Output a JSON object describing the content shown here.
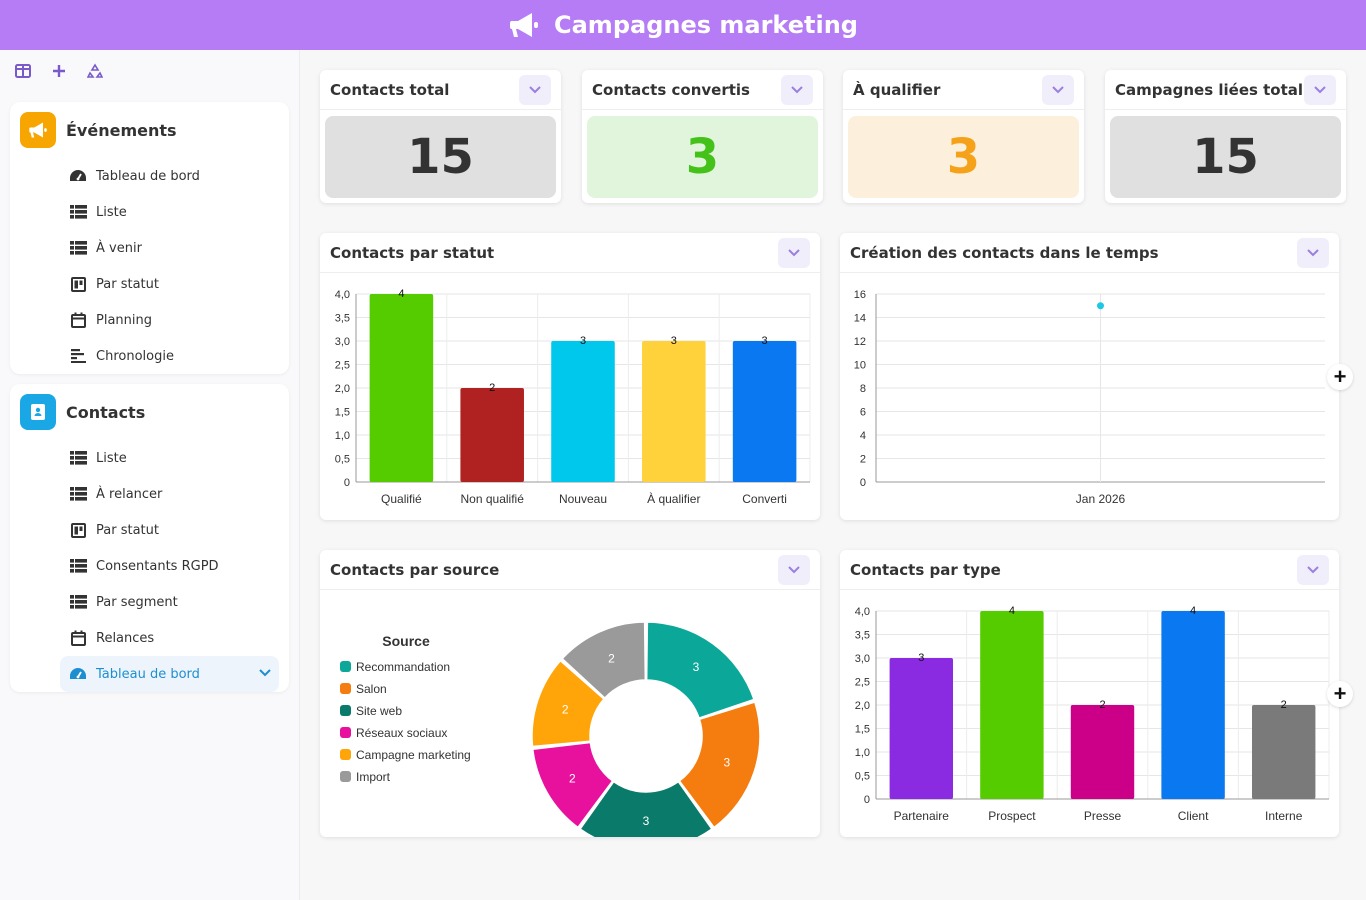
{
  "header": {
    "title": "Campagnes marketing",
    "icon": "megaphone-icon",
    "bg": "#b57cf5"
  },
  "sidebar": {
    "tools": [
      "layout-icon",
      "plus-icon",
      "recycle-icon"
    ],
    "groups": [
      {
        "label": "Événements",
        "color": "#f7a500",
        "icon": "megaphone-icon",
        "items": [
          {
            "label": "Tableau de bord",
            "icon": "dashboard-icon"
          },
          {
            "label": "Liste",
            "icon": "list-icon"
          },
          {
            "label": "À venir",
            "icon": "list-icon"
          },
          {
            "label": "Par statut",
            "icon": "kanban-icon"
          },
          {
            "label": "Planning",
            "icon": "calendar-icon"
          },
          {
            "label": "Chronologie",
            "icon": "timeline-icon"
          }
        ]
      },
      {
        "label": "Contacts",
        "color": "#1aa7e6",
        "icon": "contact-book-icon",
        "items": [
          {
            "label": "Liste",
            "icon": "list-icon"
          },
          {
            "label": "À relancer",
            "icon": "list-icon"
          },
          {
            "label": "Par statut",
            "icon": "kanban-icon"
          },
          {
            "label": "Consentants RGPD",
            "icon": "list-icon"
          },
          {
            "label": "Par segment",
            "icon": "list-icon"
          },
          {
            "label": "Relances",
            "icon": "calendar-icon"
          },
          {
            "label": "Tableau de bord",
            "icon": "dashboard-icon",
            "active": true
          }
        ]
      }
    ]
  },
  "kpis": [
    {
      "title": "Contacts total",
      "value": "15",
      "bg": "#e0e0e0",
      "color": "#333333"
    },
    {
      "title": "Contacts convertis",
      "value": "3",
      "bg": "#e1f5dc",
      "color": "#44c21a"
    },
    {
      "title": "À qualifier",
      "value": "3",
      "bg": "#fcf0dc",
      "color": "#f5a21a"
    },
    {
      "title": "Campagnes liées total",
      "value": "15",
      "bg": "#e0e0e0",
      "color": "#333333"
    }
  ],
  "panels": {
    "statut": "Contacts par statut",
    "temps": "Création des contacts dans le temps",
    "source": "Contacts par source",
    "type": "Contacts par type"
  },
  "chart_data": [
    {
      "type": "bar",
      "title": "Contacts par statut",
      "categories": [
        "Qualifié",
        "Non qualifié",
        "Nouveau",
        "À qualifier",
        "Converti"
      ],
      "values": [
        4,
        2,
        3,
        3,
        3
      ],
      "colors": [
        "#55cc00",
        "#b02222",
        "#00c8ec",
        "#ffd23c",
        "#0a78f0"
      ],
      "yticks": [
        "0",
        "0,5",
        "1,0",
        "1,5",
        "2,0",
        "2,5",
        "3,0",
        "3,5",
        "4,0"
      ],
      "ylim": [
        0,
        4
      ],
      "grid": true
    },
    {
      "type": "scatter",
      "title": "Création des contacts dans le temps",
      "x": [
        "Jan 2026"
      ],
      "values": [
        15
      ],
      "color": "#1ec8e4",
      "yticks": [
        "0",
        "2",
        "4",
        "6",
        "8",
        "10",
        "12",
        "14",
        "16"
      ],
      "ylim": [
        0,
        16
      ],
      "grid": true
    },
    {
      "type": "pie",
      "title": "Contacts par source",
      "legend_title": "Source",
      "legend_position": "left",
      "labels": [
        "Recommandation",
        "Salon",
        "Site web",
        "Réseaux sociaux",
        "Campagne marketing",
        "Import"
      ],
      "values": [
        3,
        3,
        3,
        2,
        2,
        2
      ],
      "colors": [
        "#0ba89a",
        "#f57c0e",
        "#0a7a6a",
        "#e8119e",
        "#ffa50a",
        "#9a9a9a"
      ]
    },
    {
      "type": "bar",
      "title": "Contacts par type",
      "categories": [
        "Partenaire",
        "Prospect",
        "Presse",
        "Client",
        "Interne"
      ],
      "values": [
        3,
        4,
        2,
        4,
        2
      ],
      "colors": [
        "#8a2be2",
        "#55cc00",
        "#cc0088",
        "#0a78f0",
        "#7a7a7a"
      ],
      "yticks": [
        "0",
        "0,5",
        "1,0",
        "1,5",
        "2,0",
        "2,5",
        "3,0",
        "3,5",
        "4,0"
      ],
      "ylim": [
        0,
        4
      ],
      "grid": true
    }
  ]
}
